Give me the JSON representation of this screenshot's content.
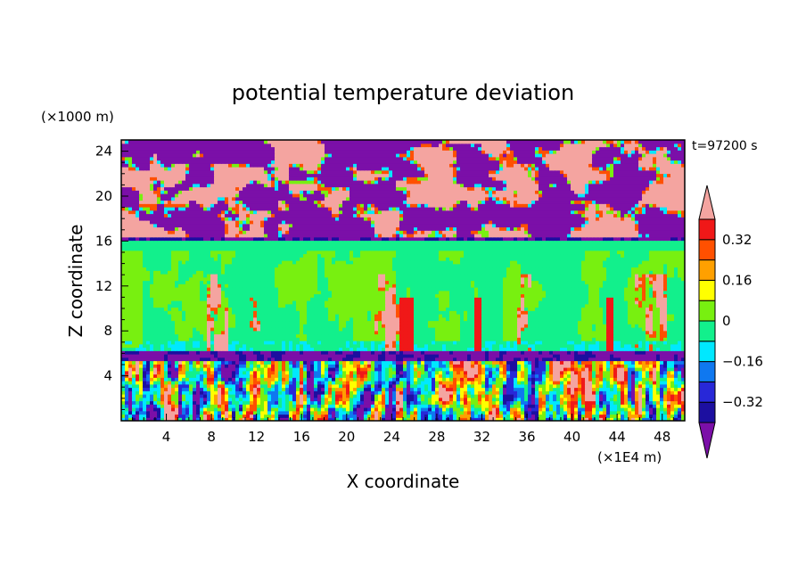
{
  "chart_data": {
    "type": "heatmap",
    "title": "potential temperature deviation",
    "xlabel": "X coordinate",
    "ylabel": "Z coordinate",
    "x_unit": "(×1E4 m)",
    "y_unit": "(×1000 m)",
    "time_label": "t=97200 s",
    "xlim": [
      0,
      50
    ],
    "ylim": [
      0,
      25
    ],
    "x_ticks": [
      4,
      8,
      12,
      16,
      20,
      24,
      28,
      32,
      36,
      40,
      44,
      48
    ],
    "x_tick_labels": [
      "4",
      "8",
      "12",
      "16",
      "20",
      "24",
      "28",
      "32",
      "36",
      "40",
      "44",
      "48"
    ],
    "y_ticks": [
      4,
      8,
      12,
      16,
      20,
      24
    ],
    "y_tick_labels": [
      "4",
      "8",
      "12",
      "16",
      "20",
      "24"
    ],
    "colorbar": {
      "levels": [
        -0.4,
        -0.32,
        -0.24,
        -0.16,
        -0.08,
        0,
        0.08,
        0.16,
        0.24,
        0.32,
        0.4
      ],
      "labels": [
        {
          "level": 0.32,
          "text": "0.32"
        },
        {
          "level": 0.16,
          "text": "0.16"
        },
        {
          "level": 0,
          "text": "0"
        },
        {
          "level": -0.16,
          "text": "−0.16"
        },
        {
          "level": -0.32,
          "text": "−0.32"
        }
      ],
      "colors": [
        "#7b0fa8",
        "#1c0fa0",
        "#2828d8",
        "#0f78f0",
        "#00e8ff",
        "#12f08c",
        "#78f010",
        "#ffff00",
        "#ffa000",
        "#ff5000",
        "#f01818",
        "#f4a4a0"
      ]
    },
    "regions": [
      {
        "z_range": [
          16.3,
          25
        ],
        "pattern": "alternating purple (below -0.4) and pink (above 0.4) blobs"
      },
      {
        "z_range": [
          16.0,
          16.3
        ],
        "pattern": "thin purple/blue layer"
      },
      {
        "z_range": [
          6.2,
          16.0
        ],
        "pattern": "mostly 0 to -0.08 with patches 0 to 0.08 and sparse convective streaks"
      },
      {
        "z_range": [
          5.4,
          6.2
        ],
        "pattern": "purple/blue band"
      },
      {
        "z_range": [
          0,
          5.4
        ],
        "pattern": "turbulent mixture of all levels"
      }
    ]
  }
}
